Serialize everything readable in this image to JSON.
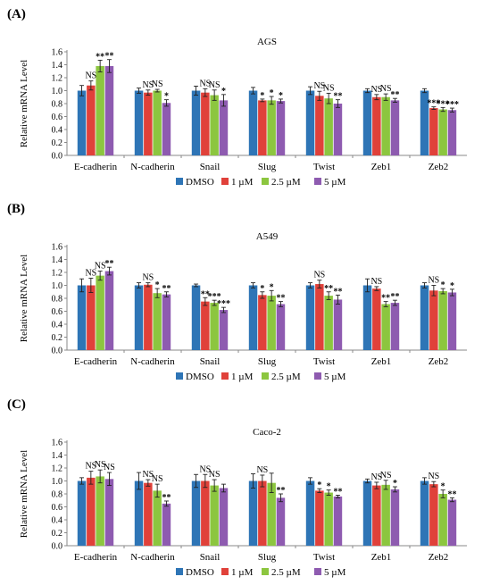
{
  "legend_labels": [
    "DMSO",
    "1 µM",
    "2.5 µM",
    "5 µM"
  ],
  "colors": [
    "#2e75b6",
    "#e0413a",
    "#8cc63f",
    "#8e5bb0"
  ],
  "chart_data": [
    {
      "type": "bar",
      "panel_label": "(A)",
      "title": "AGS",
      "ylabel": "Relative mRNA Level",
      "ylim": [
        0,
        1.6
      ],
      "yticks": [
        "0.0",
        "0.2",
        "0.4",
        "0.6",
        "0.8",
        "1.0",
        "1.2",
        "1.4",
        "1.6"
      ],
      "categories": [
        "E-cadherin",
        "N-cadherin",
        "Snail",
        "Slug",
        "Twist",
        "Zeb1",
        "Zeb2"
      ],
      "legend_position": "bottom",
      "series": [
        {
          "name": "DMSO",
          "values": [
            1.0,
            1.0,
            1.0,
            1.0,
            1.0,
            1.0,
            1.0
          ],
          "errors": [
            0.08,
            0.04,
            0.07,
            0.05,
            0.06,
            0.03,
            0.03
          ],
          "sig": [
            "",
            "",
            "",
            "",
            "",
            "",
            ""
          ]
        },
        {
          "name": "1 µM",
          "values": [
            1.08,
            0.97,
            0.97,
            0.85,
            0.92,
            0.9,
            0.73
          ],
          "errors": [
            0.07,
            0.04,
            0.06,
            0.02,
            0.07,
            0.04,
            0.02
          ],
          "sig": [
            "NS",
            "NS",
            "NS",
            "*",
            "NS",
            "NS",
            "***"
          ]
        },
        {
          "name": "2.5 µM",
          "values": [
            1.38,
            1.0,
            0.93,
            0.85,
            0.88,
            0.9,
            0.71
          ],
          "errors": [
            0.09,
            0.02,
            0.08,
            0.06,
            0.08,
            0.05,
            0.03
          ],
          "sig": [
            "**",
            "NS",
            "NS",
            "*",
            "NS",
            "NS",
            "***"
          ]
        },
        {
          "name": "5 µM",
          "values": [
            1.38,
            0.81,
            0.85,
            0.84,
            0.8,
            0.85,
            0.7
          ],
          "errors": [
            0.1,
            0.05,
            0.09,
            0.03,
            0.06,
            0.03,
            0.03
          ],
          "sig": [
            "**",
            "*",
            "*",
            "*",
            "**",
            "**",
            "***"
          ]
        }
      ]
    },
    {
      "type": "bar",
      "panel_label": "(B)",
      "title": "A549",
      "ylabel": "Relative mRNA Level",
      "ylim": [
        0,
        1.6
      ],
      "yticks": [
        "0.0",
        "0.2",
        "0.4",
        "0.6",
        "0.8",
        "1.0",
        "1.2",
        "1.4",
        "1.6"
      ],
      "categories": [
        "E-cadherin",
        "N-cadherin",
        "Snail",
        "Slug",
        "Twist",
        "Zeb1",
        "Zeb2"
      ],
      "legend_position": "bottom",
      "series": [
        {
          "name": "DMSO",
          "values": [
            1.0,
            1.0,
            1.0,
            1.0,
            1.0,
            1.0,
            1.0
          ],
          "errors": [
            0.1,
            0.04,
            0.02,
            0.04,
            0.04,
            0.1,
            0.04
          ],
          "sig": [
            "",
            "",
            "",
            "",
            "",
            "",
            ""
          ]
        },
        {
          "name": "1 µM",
          "values": [
            1.0,
            1.01,
            0.75,
            0.85,
            1.02,
            0.95,
            0.92
          ],
          "errors": [
            0.11,
            0.03,
            0.06,
            0.05,
            0.06,
            0.03,
            0.08
          ],
          "sig": [
            "NS",
            "NS",
            "**",
            "*",
            "NS",
            "NS",
            "NS"
          ]
        },
        {
          "name": "2.5 µM",
          "values": [
            1.15,
            0.88,
            0.73,
            0.84,
            0.84,
            0.71,
            0.91
          ],
          "errors": [
            0.07,
            0.07,
            0.04,
            0.08,
            0.06,
            0.04,
            0.04
          ],
          "sig": [
            "NS",
            "*",
            "***",
            "*",
            "**",
            "**",
            "*"
          ]
        },
        {
          "name": "5 µM",
          "values": [
            1.22,
            0.86,
            0.62,
            0.71,
            0.78,
            0.73,
            0.89
          ],
          "errors": [
            0.06,
            0.04,
            0.04,
            0.04,
            0.07,
            0.04,
            0.05
          ],
          "sig": [
            "**",
            "**",
            "***",
            "**",
            "**",
            "**",
            "*"
          ]
        }
      ]
    },
    {
      "type": "bar",
      "panel_label": "(C)",
      "title": "Caco-2",
      "ylabel": "Relative mRNA Level",
      "ylim": [
        0,
        1.6
      ],
      "yticks": [
        "0.0",
        "0.2",
        "0.4",
        "0.6",
        "0.8",
        "1.0",
        "1.2",
        "1.4",
        "1.6"
      ],
      "categories": [
        "E-cadherin",
        "N-cadherin",
        "Snail",
        "Slug",
        "Twist",
        "Zeb1",
        "Zeb2"
      ],
      "legend_position": "bottom",
      "series": [
        {
          "name": "DMSO",
          "values": [
            1.0,
            1.0,
            1.0,
            1.0,
            1.0,
            1.0,
            1.0
          ],
          "errors": [
            0.05,
            0.13,
            0.1,
            0.11,
            0.05,
            0.03,
            0.05
          ],
          "sig": [
            "",
            "",
            "",
            "",
            "",
            "",
            ""
          ]
        },
        {
          "name": "1 µM",
          "values": [
            1.05,
            0.97,
            1.0,
            1.0,
            0.85,
            0.93,
            0.95
          ],
          "errors": [
            0.1,
            0.05,
            0.1,
            0.09,
            0.03,
            0.05,
            0.04
          ],
          "sig": [
            "NS",
            "NS",
            "NS",
            "NS",
            "*",
            "NS",
            "NS"
          ]
        },
        {
          "name": "2.5 µM",
          "values": [
            1.07,
            0.85,
            0.93,
            0.97,
            0.82,
            0.94,
            0.8
          ],
          "errors": [
            0.1,
            0.1,
            0.09,
            0.15,
            0.04,
            0.07,
            0.06
          ],
          "sig": [
            "NS",
            "NS",
            "NS",
            "",
            "*",
            "NS",
            "*"
          ]
        },
        {
          "name": "5 µM",
          "values": [
            1.03,
            0.65,
            0.89,
            0.74,
            0.76,
            0.87,
            0.71
          ],
          "errors": [
            0.1,
            0.04,
            0.06,
            0.06,
            0.02,
            0.04,
            0.03
          ],
          "sig": [
            "NS",
            "**",
            "",
            "**",
            "**",
            "*",
            "**"
          ]
        }
      ]
    }
  ]
}
